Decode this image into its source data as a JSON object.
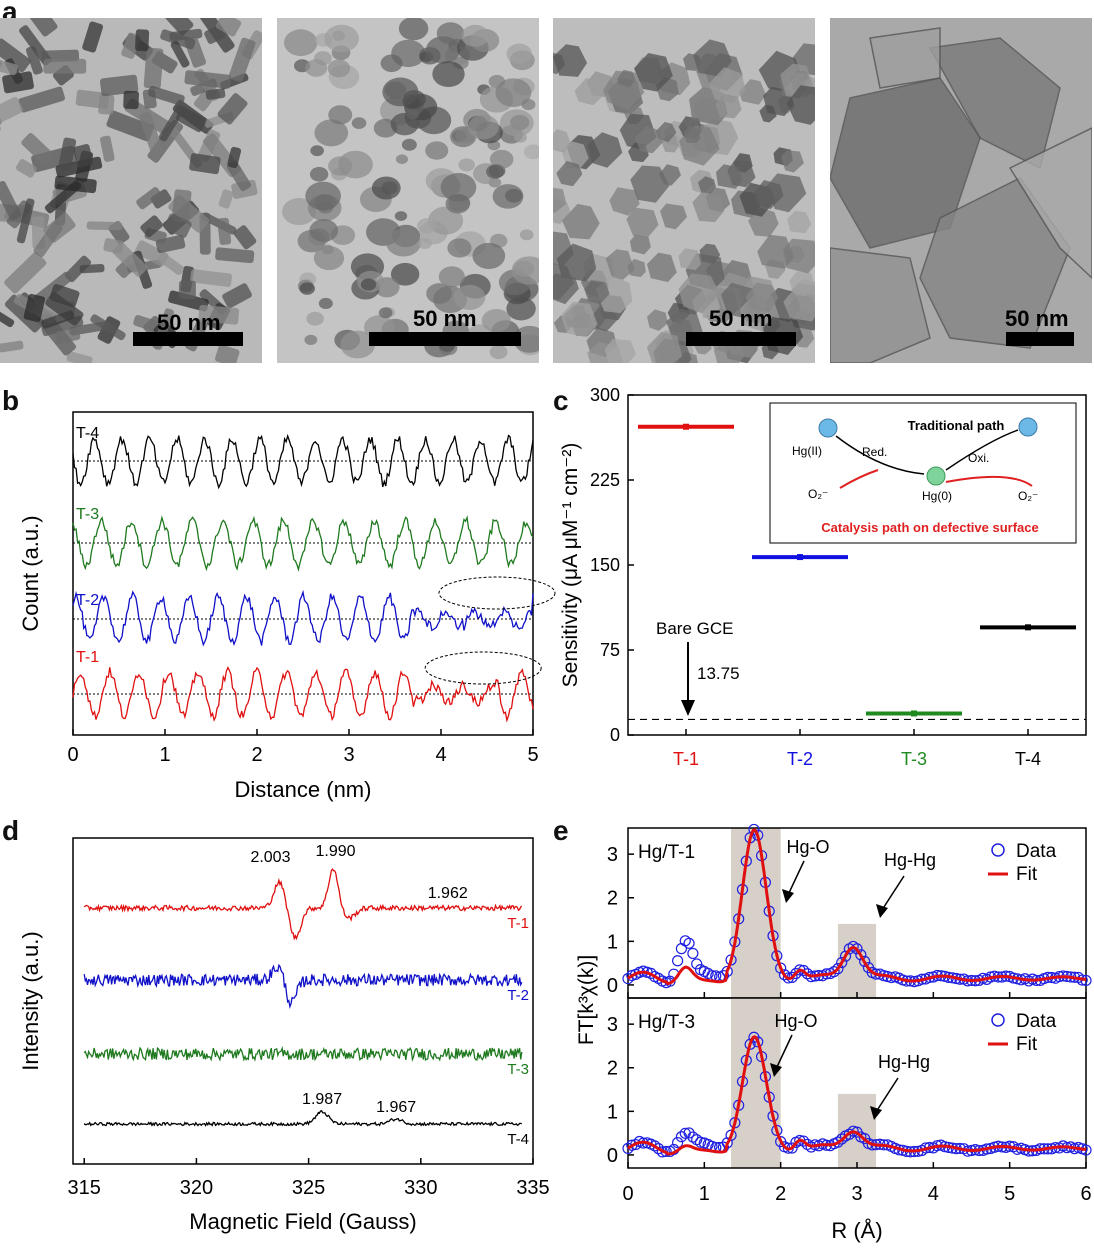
{
  "panels": {
    "a": "a",
    "b": "b",
    "c": "c",
    "d": "d",
    "e": "e"
  },
  "tem_images": [
    {
      "scale_label": "50 nm",
      "tone": "#b9b9b9",
      "particle": "rods"
    },
    {
      "scale_label": "50 nm",
      "tone": "#c4c4c4",
      "particle": "clusters"
    },
    {
      "scale_label": "50 nm",
      "tone": "#bdbdbd",
      "particle": "polygons"
    },
    {
      "scale_label": "50 nm",
      "tone": "#a9a9a9",
      "particle": "large"
    }
  ],
  "chart_data": [
    {
      "id": "b",
      "type": "line",
      "xlabel": "Distance (nm)",
      "ylabel": "Count (a.u.)",
      "xlim": [
        0,
        5
      ],
      "xticks": [
        0,
        1,
        2,
        3,
        4,
        5
      ],
      "series": [
        {
          "name": "T-4",
          "color": "#000000",
          "offset": 3,
          "period": 0.3,
          "defect_range": null
        },
        {
          "name": "T-3",
          "color": "#1f7a1f",
          "offset": 2,
          "period": 0.33,
          "defect_range": null
        },
        {
          "name": "T-2",
          "color": "#1010c8",
          "offset": 1,
          "period": 0.31,
          "defect_range": [
            3.7,
            5.0
          ]
        },
        {
          "name": "T-1",
          "color": "#e01010",
          "offset": 0,
          "period": 0.32,
          "defect_range": [
            3.7,
            4.6
          ]
        }
      ]
    },
    {
      "id": "c",
      "type": "scatter",
      "ylabel": "Sensitivity (μA μM⁻¹ cm⁻²)",
      "ylim": [
        0,
        300
      ],
      "yticks": [
        0,
        75,
        150,
        225,
        300
      ],
      "categories": [
        "T-1",
        "T-2",
        "T-3",
        "T-4"
      ],
      "values": [
        272,
        157,
        19,
        95
      ],
      "colors": [
        "#e01010",
        "#1010e0",
        "#1f8a1f",
        "#000000"
      ],
      "baseline": 13.75,
      "baseline_label": "13.75",
      "annotation": "Bare GCE",
      "inset": {
        "title": "Traditional path",
        "subtitle": "Catalysis path on defective surface",
        "hg2": "Hg(II)",
        "hg0": "Hg(0)",
        "red": "Red.",
        "oxi": "Oxi.",
        "o2_left": "O₂⁻",
        "o2_right": "O₂⁻"
      }
    },
    {
      "id": "d",
      "type": "line",
      "xlabel": "Magnetic Field (Gauss)",
      "ylabel": "Intensity (a.u.)",
      "xlim": [
        314.5,
        335
      ],
      "xticks": [
        315,
        320,
        325,
        330,
        335
      ],
      "series": [
        {
          "name": "T-1",
          "color": "#e01010",
          "offset": 3
        },
        {
          "name": "T-2",
          "color": "#1010c8",
          "offset": 2
        },
        {
          "name": "T-3",
          "color": "#1f7a1f",
          "offset": 1
        },
        {
          "name": "T-4",
          "color": "#000000",
          "offset": 0
        }
      ],
      "annotations": [
        {
          "text": "2.003",
          "series": "T-1",
          "x": 323.3
        },
        {
          "text": "1.990",
          "series": "T-1",
          "x": 326.2
        },
        {
          "text": "1.962",
          "series": "T-1",
          "x": 331.2
        },
        {
          "text": "1.987",
          "series": "T-4",
          "x": 325.6
        },
        {
          "text": "1.967",
          "series": "T-4",
          "x": 328.9
        }
      ]
    },
    {
      "id": "e",
      "type": "line",
      "xlabel": "R (Å)",
      "ylabel": "FT[k³χ(k)]",
      "xlim": [
        0,
        6
      ],
      "ylim": [
        -0.3,
        3.6
      ],
      "xticks": [
        0,
        1,
        2,
        3,
        4,
        5,
        6
      ],
      "yticks": [
        0,
        1,
        2,
        3
      ],
      "legend": [
        "Data",
        "Fit"
      ],
      "shaded": [
        [
          1.35,
          2.0
        ],
        [
          2.75,
          3.25
        ]
      ],
      "subplots": [
        {
          "name": "Hg/T-1",
          "peak1": 3.35,
          "peak2": 0.78,
          "label1": "Hg-O",
          "label2": "Hg-Hg",
          "bump": 1.0
        },
        {
          "name": "Hg/T-3",
          "peak1": 2.5,
          "peak2": 0.45,
          "label1": "Hg-O",
          "label2": "Hg-Hg",
          "bump": 0.45
        }
      ]
    }
  ]
}
